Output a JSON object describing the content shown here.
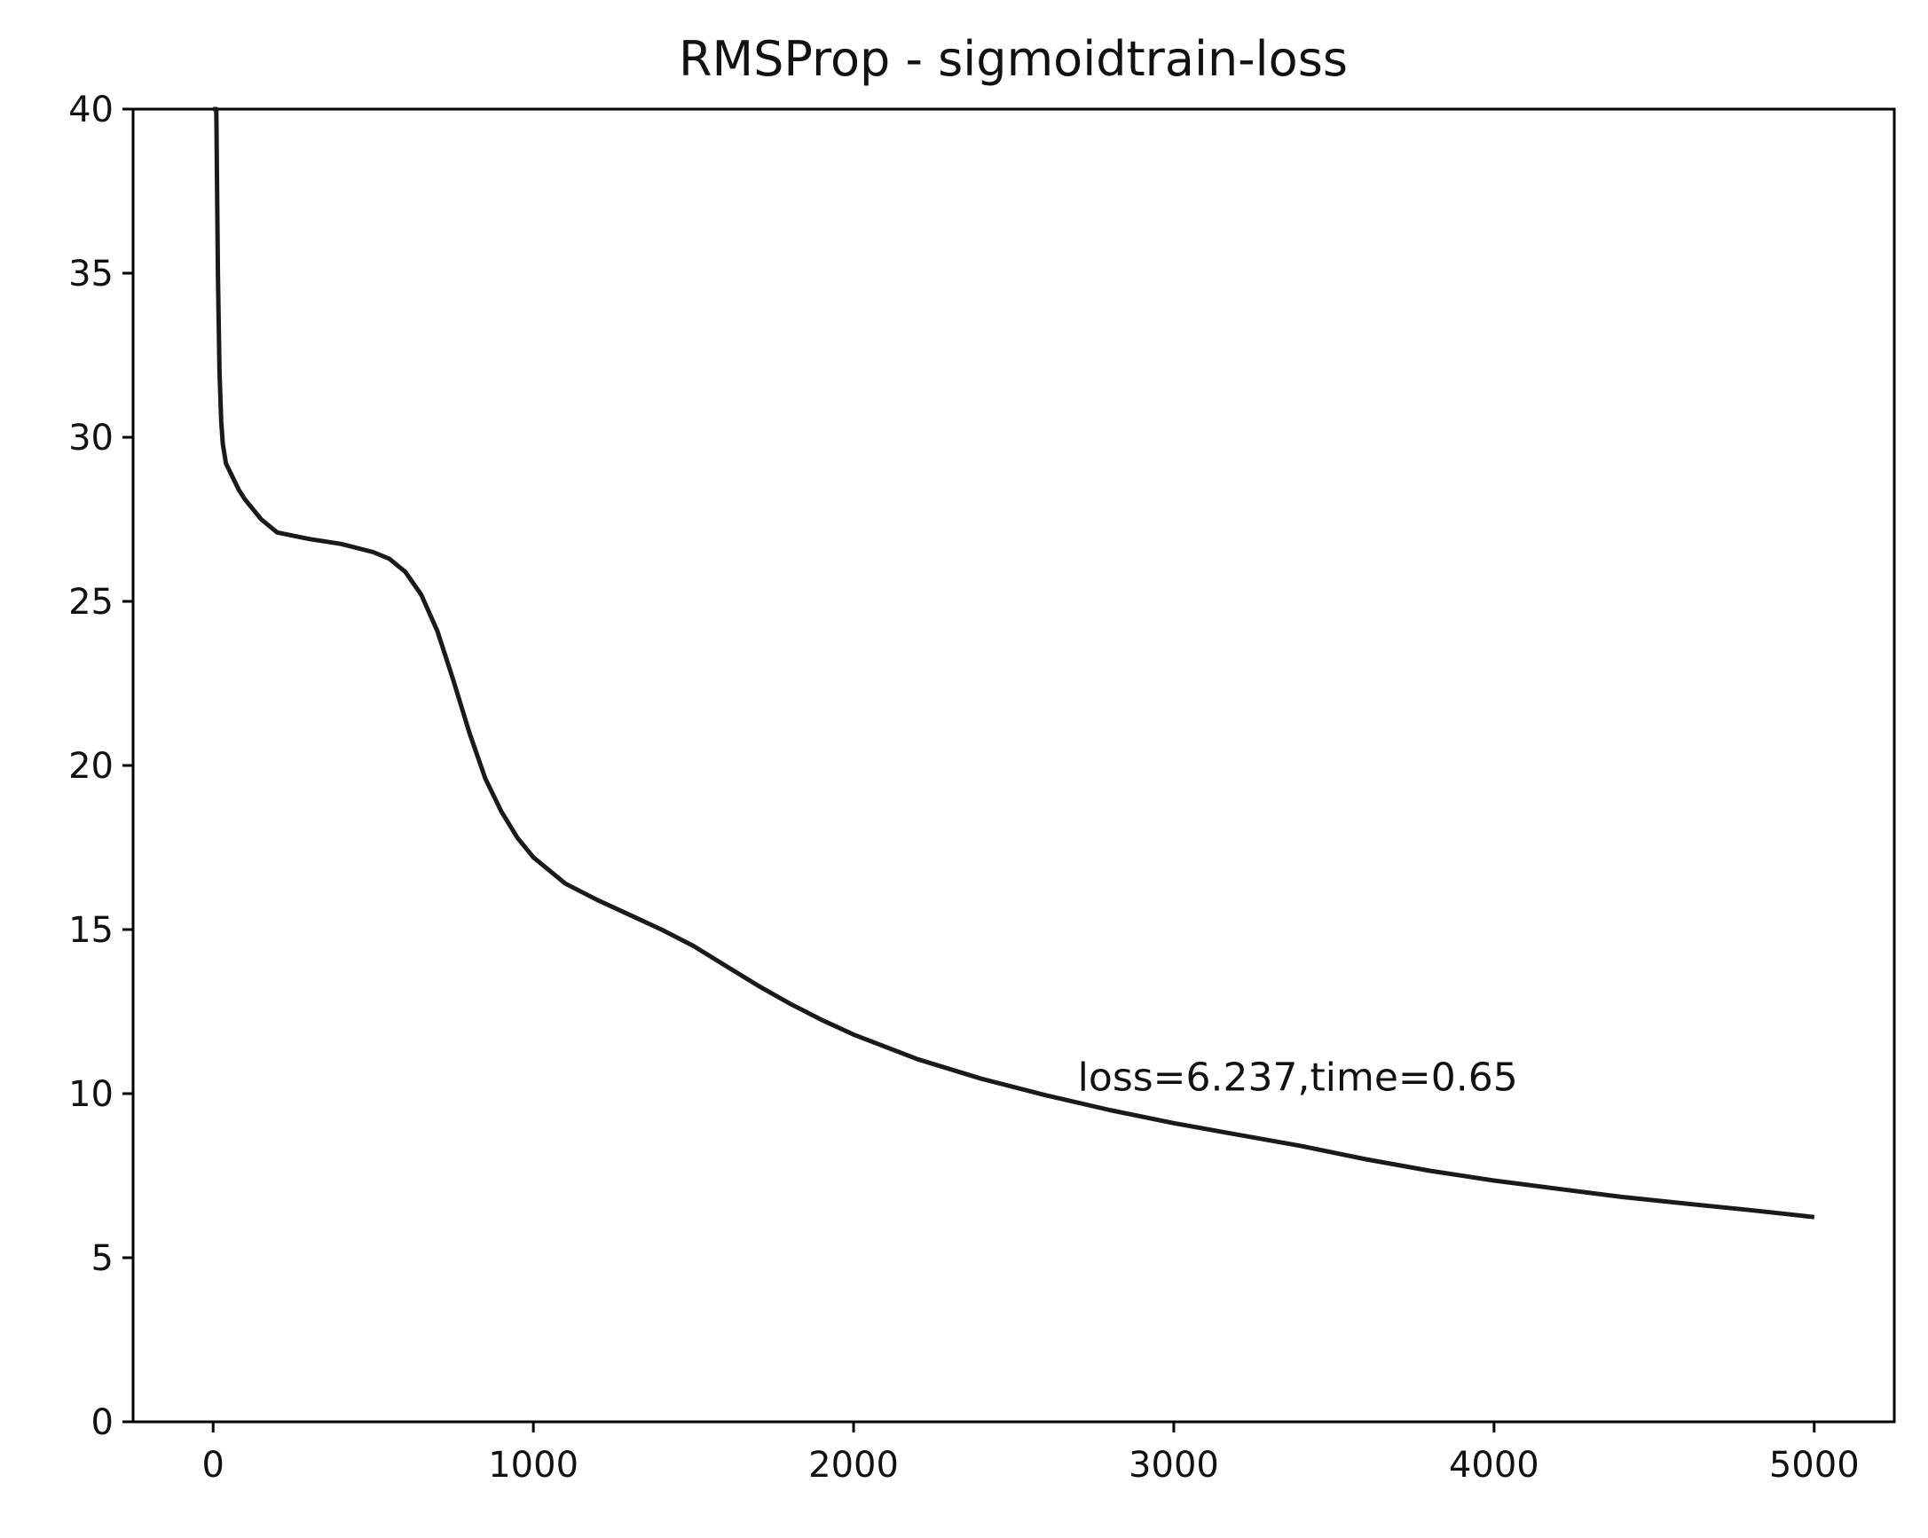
{
  "chart_data": {
    "type": "line",
    "title": "RMSProp - sigmoidtrain-loss",
    "xlabel": "",
    "ylabel": "",
    "xlim": [
      -250,
      5250
    ],
    "ylim": [
      0,
      40
    ],
    "xticks": [
      0,
      1000,
      2000,
      3000,
      4000,
      5000
    ],
    "yticks": [
      0,
      5,
      10,
      15,
      20,
      25,
      30,
      35,
      40
    ],
    "grid": false,
    "line_color": "#1a1a1a",
    "series": [
      {
        "x": [
          0,
          10,
          15,
          20,
          25,
          30,
          40,
          60,
          80,
          100,
          150,
          200,
          300,
          400,
          500,
          550,
          600,
          650,
          700,
          750,
          800,
          850,
          900,
          950,
          1000,
          1100,
          1200,
          1300,
          1400,
          1500,
          1600,
          1700,
          1800,
          1900,
          2000,
          2200,
          2400,
          2600,
          2800,
          3000,
          3200,
          3400,
          3600,
          3800,
          4000,
          4200,
          4400,
          4600,
          4800,
          5000
        ],
        "y": [
          40,
          40,
          35,
          32,
          30.5,
          29.8,
          29.2,
          28.8,
          28.4,
          28.1,
          27.5,
          27.1,
          26.9,
          26.75,
          26.5,
          26.3,
          25.9,
          25.2,
          24.1,
          22.6,
          21.0,
          19.6,
          18.6,
          17.8,
          17.2,
          16.4,
          15.9,
          15.45,
          15.0,
          14.5,
          13.9,
          13.3,
          12.75,
          12.25,
          11.8,
          11.05,
          10.45,
          9.95,
          9.5,
          9.1,
          8.75,
          8.4,
          8.0,
          7.65,
          7.35,
          7.1,
          6.85,
          6.65,
          6.45,
          6.237
        ]
      }
    ],
    "annotations": [
      {
        "text": "loss=6.237,time=0.65",
        "x": 2700,
        "y": 10.1
      }
    ]
  }
}
